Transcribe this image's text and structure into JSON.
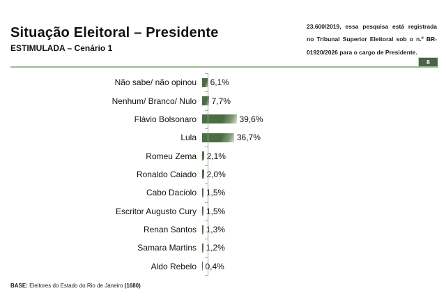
{
  "header": {
    "title": "Situação Eleitoral – Presidente",
    "subtitle": "ESTIMULADA – Cenário 1",
    "note_lines": [
      "23.600/2019, essa pesquisa está registrada",
      "no Tribunal Superior Eleitoral sob o n.º BR-",
      "01920/2026 para o cargo de Presidente."
    ],
    "page_number": "8"
  },
  "chart_data": {
    "type": "bar",
    "orientation": "horizontal",
    "title": "Situação Eleitoral – Presidente",
    "subtitle": "ESTIMULADA – Cenário 1",
    "categories": [
      "Não sabe/ não opinou",
      "Nenhum/ Branco/ Nulo",
      "Flávio Bolsonaro",
      "Lula",
      "Romeu Zema",
      "Ronaldo Caiado",
      "Cabo Daciolo",
      "Escritor Augusto Cury",
      "Renan Santos",
      "Samara Martins",
      "Aldo Rebelo"
    ],
    "values": [
      6.1,
      7.7,
      39.6,
      36.7,
      2.1,
      2.0,
      1.5,
      1.5,
      1.3,
      1.2,
      0.4
    ],
    "value_labels": [
      "6,1%",
      "7,7%",
      "39,6%",
      "36,7%",
      "2,1%",
      "2,0%",
      "1,5%",
      "1,5%",
      "1,3%",
      "1,2%",
      "0,4%"
    ],
    "unit": "%",
    "xlim": [
      0,
      100
    ],
    "grid": false,
    "legend": false
  },
  "footer": {
    "base_label": "BASE:",
    "base_text": "Eleitores do Estado do Rio de Janeiro",
    "base_count": "(1680)"
  },
  "colors": {
    "bar_green": "#4a6d44",
    "bar_mid_green": "#7f9a75",
    "bar_light_green": "#cdd9c3",
    "separator_green": "#9dbb93",
    "page_box_green": "#486449",
    "axis_gray": "#a6a6a6"
  }
}
